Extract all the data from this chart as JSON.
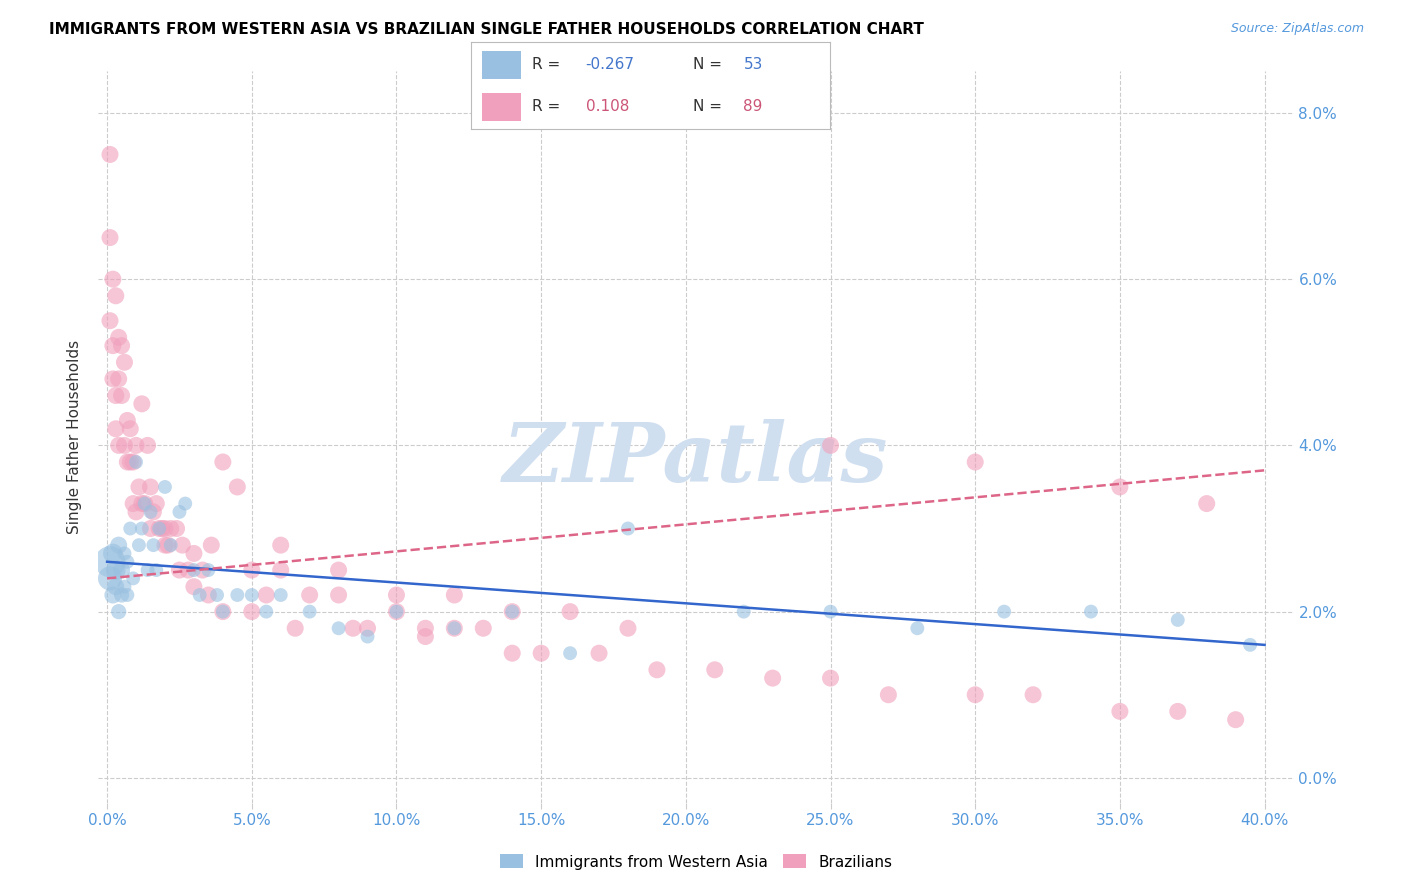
{
  "title": "IMMIGRANTS FROM WESTERN ASIA VS BRAZILIAN SINGLE FATHER HOUSEHOLDS CORRELATION CHART",
  "source": "Source: ZipAtlas.com",
  "ylabel_label": "Single Father Households",
  "legend_entries": [
    {
      "label": "Immigrants from Western Asia",
      "color": "#A8C8E8",
      "R": "-0.267",
      "N": "53",
      "R_color": "#4477CC"
    },
    {
      "label": "Brazilians",
      "color": "#F4A8C0",
      "R": "0.108",
      "N": "89",
      "R_color": "#CC5577"
    }
  ],
  "blue_scatter_x": [
    0.001,
    0.001,
    0.002,
    0.002,
    0.003,
    0.003,
    0.004,
    0.004,
    0.005,
    0.005,
    0.006,
    0.006,
    0.007,
    0.007,
    0.008,
    0.009,
    0.01,
    0.011,
    0.012,
    0.013,
    0.014,
    0.015,
    0.016,
    0.017,
    0.018,
    0.02,
    0.022,
    0.025,
    0.027,
    0.03,
    0.032,
    0.035,
    0.038,
    0.04,
    0.045,
    0.05,
    0.055,
    0.06,
    0.07,
    0.08,
    0.09,
    0.1,
    0.12,
    0.14,
    0.16,
    0.18,
    0.22,
    0.25,
    0.28,
    0.31,
    0.34,
    0.37,
    0.395
  ],
  "blue_scatter_y": [
    0.026,
    0.024,
    0.027,
    0.022,
    0.025,
    0.023,
    0.028,
    0.02,
    0.025,
    0.022,
    0.027,
    0.023,
    0.026,
    0.022,
    0.03,
    0.024,
    0.038,
    0.028,
    0.03,
    0.033,
    0.025,
    0.032,
    0.028,
    0.025,
    0.03,
    0.035,
    0.028,
    0.032,
    0.033,
    0.025,
    0.022,
    0.025,
    0.022,
    0.02,
    0.022,
    0.022,
    0.02,
    0.022,
    0.02,
    0.018,
    0.017,
    0.02,
    0.018,
    0.02,
    0.015,
    0.03,
    0.02,
    0.02,
    0.018,
    0.02,
    0.02,
    0.019,
    0.016
  ],
  "blue_scatter_sizes": [
    500,
    300,
    200,
    150,
    200,
    150,
    150,
    120,
    150,
    120,
    100,
    100,
    100,
    100,
    100,
    100,
    100,
    100,
    100,
    100,
    100,
    100,
    100,
    100,
    100,
    100,
    100,
    100,
    100,
    100,
    100,
    100,
    100,
    100,
    100,
    100,
    100,
    100,
    100,
    100,
    100,
    100,
    100,
    100,
    100,
    100,
    100,
    100,
    100,
    100,
    100,
    100,
    100
  ],
  "pink_scatter_x": [
    0.001,
    0.001,
    0.001,
    0.002,
    0.002,
    0.002,
    0.003,
    0.003,
    0.003,
    0.004,
    0.004,
    0.004,
    0.005,
    0.005,
    0.006,
    0.006,
    0.007,
    0.007,
    0.008,
    0.008,
    0.009,
    0.009,
    0.01,
    0.01,
    0.011,
    0.012,
    0.013,
    0.014,
    0.015,
    0.016,
    0.017,
    0.018,
    0.019,
    0.02,
    0.021,
    0.022,
    0.024,
    0.026,
    0.028,
    0.03,
    0.033,
    0.036,
    0.04,
    0.045,
    0.05,
    0.055,
    0.06,
    0.07,
    0.08,
    0.09,
    0.1,
    0.11,
    0.12,
    0.13,
    0.14,
    0.15,
    0.17,
    0.19,
    0.21,
    0.23,
    0.25,
    0.27,
    0.3,
    0.32,
    0.35,
    0.37,
    0.39,
    0.25,
    0.3,
    0.35,
    0.38,
    0.16,
    0.18,
    0.12,
    0.14,
    0.06,
    0.08,
    0.1,
    0.012,
    0.015,
    0.02,
    0.025,
    0.03,
    0.035,
    0.04,
    0.05,
    0.065,
    0.085,
    0.11
  ],
  "pink_scatter_y": [
    0.075,
    0.065,
    0.055,
    0.052,
    0.06,
    0.048,
    0.058,
    0.046,
    0.042,
    0.053,
    0.048,
    0.04,
    0.052,
    0.046,
    0.05,
    0.04,
    0.043,
    0.038,
    0.042,
    0.038,
    0.038,
    0.033,
    0.04,
    0.032,
    0.035,
    0.045,
    0.033,
    0.04,
    0.035,
    0.032,
    0.033,
    0.03,
    0.03,
    0.03,
    0.028,
    0.03,
    0.03,
    0.028,
    0.025,
    0.027,
    0.025,
    0.028,
    0.038,
    0.035,
    0.025,
    0.022,
    0.025,
    0.022,
    0.022,
    0.018,
    0.02,
    0.018,
    0.018,
    0.018,
    0.015,
    0.015,
    0.015,
    0.013,
    0.013,
    0.012,
    0.012,
    0.01,
    0.01,
    0.01,
    0.008,
    0.008,
    0.007,
    0.04,
    0.038,
    0.035,
    0.033,
    0.02,
    0.018,
    0.022,
    0.02,
    0.028,
    0.025,
    0.022,
    0.033,
    0.03,
    0.028,
    0.025,
    0.023,
    0.022,
    0.02,
    0.02,
    0.018,
    0.018,
    0.017
  ],
  "pink_scatter_sizes": [
    150,
    150,
    150,
    150,
    150,
    150,
    150,
    150,
    150,
    150,
    150,
    150,
    150,
    150,
    150,
    150,
    150,
    150,
    150,
    150,
    150,
    150,
    150,
    150,
    150,
    150,
    150,
    150,
    150,
    150,
    150,
    150,
    150,
    150,
    150,
    150,
    150,
    150,
    150,
    150,
    150,
    150,
    150,
    150,
    150,
    150,
    150,
    150,
    150,
    150,
    150,
    150,
    150,
    150,
    150,
    150,
    150,
    150,
    150,
    150,
    150,
    150,
    150,
    150,
    150,
    150,
    150,
    150,
    150,
    150,
    150,
    150,
    150,
    150,
    150,
    150,
    150,
    150,
    150,
    150,
    150,
    150,
    150,
    150,
    150,
    150,
    150,
    150,
    150
  ],
  "blue_line_x": [
    0.0,
    0.4
  ],
  "blue_line_y": [
    0.026,
    0.016
  ],
  "pink_line_x": [
    0.0,
    0.4
  ],
  "pink_line_y": [
    0.024,
    0.037
  ],
  "blue_color": "#99C0E0",
  "pink_color": "#F0A0BC",
  "blue_line_color": "#3366CC",
  "pink_line_color": "#DD6688",
  "background_color": "#ffffff",
  "grid_color": "#CCCCCC",
  "axis_tick_color": "#5599DD",
  "watermark_text": "ZIPatlas",
  "watermark_color": "#D0DFF0",
  "xlim": [
    -0.003,
    0.41
  ],
  "ylim": [
    -0.003,
    0.085
  ],
  "xticks": [
    0.0,
    0.05,
    0.1,
    0.15,
    0.2,
    0.25,
    0.3,
    0.35,
    0.4
  ],
  "yticks": [
    0.0,
    0.02,
    0.04,
    0.06,
    0.08
  ]
}
